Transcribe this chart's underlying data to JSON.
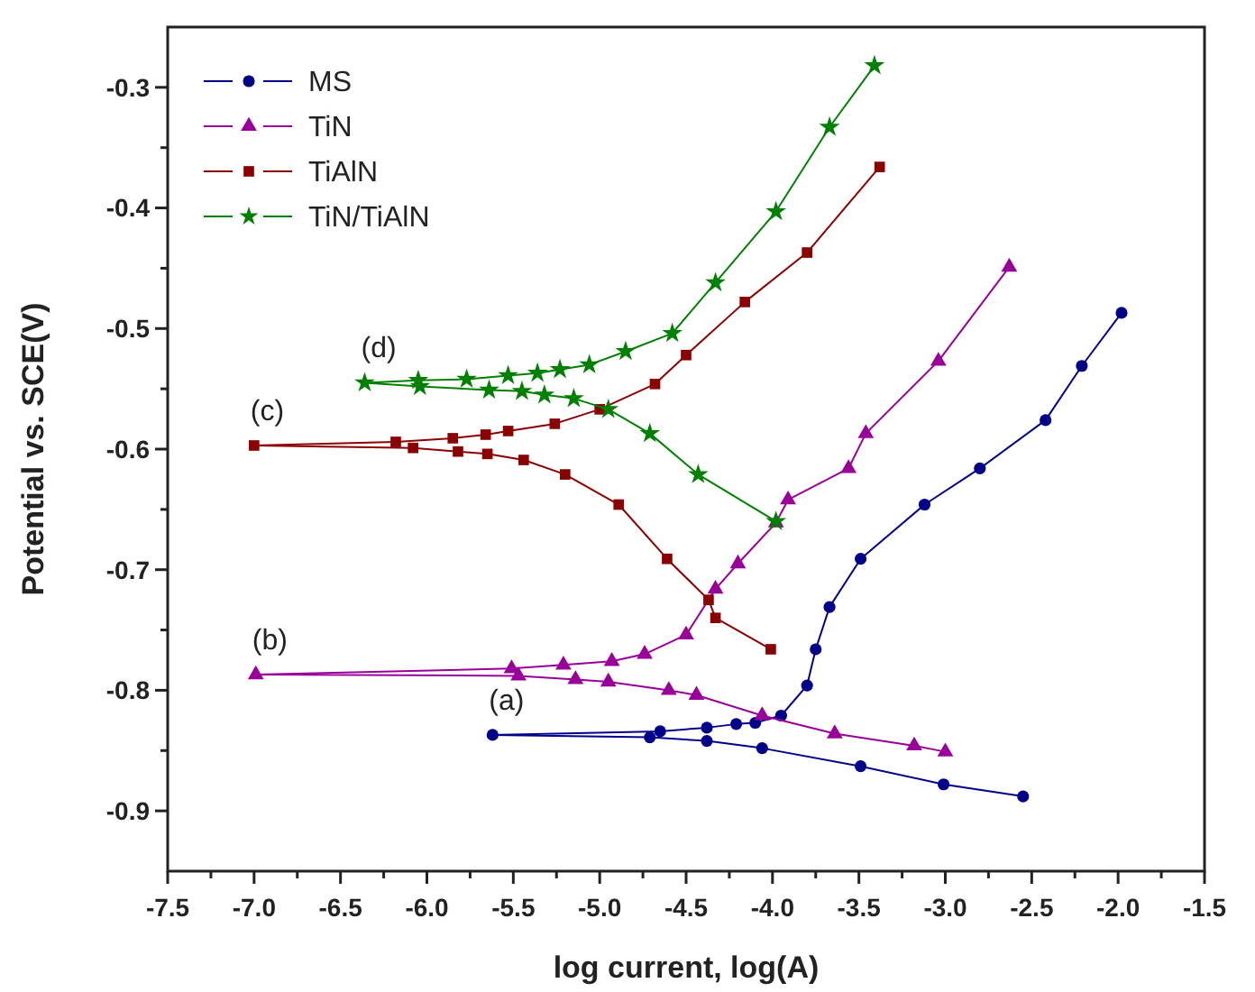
{
  "chart_data": {
    "type": "line",
    "xlabel": "log current, log(A)",
    "ylabel": "Potential vs. SCE(V)",
    "xlim": [
      -7.5,
      -1.5
    ],
    "ylim": [
      -0.95,
      -0.25
    ],
    "xticks": [
      -7.5,
      {
        "value": -7.25,
        "label": null
      },
      {
        "value": -7,
        "label": "-7.0"
      },
      {
        "value": -6.75,
        "label": null
      },
      -6.5,
      {
        "value": -6.25,
        "label": null
      },
      {
        "value": -6,
        "label": "-6.0"
      },
      {
        "value": -5.75,
        "label": null
      },
      -5.5,
      {
        "value": -5.25,
        "label": null
      },
      {
        "value": -5,
        "label": "-5.0"
      },
      {
        "value": -4.75,
        "label": null
      },
      -4.5,
      {
        "value": -4.25,
        "label": null
      },
      {
        "value": -4,
        "label": "-4.0"
      },
      {
        "value": -3.75,
        "label": null
      },
      -3.5,
      {
        "value": -3.25,
        "label": null
      },
      {
        "value": -3,
        "label": "-3.0"
      },
      {
        "value": -2.75,
        "label": null
      },
      -2.5,
      {
        "value": -2.25,
        "label": null
      },
      {
        "value": -2,
        "label": "-2.0"
      },
      {
        "value": -1.75,
        "label": null
      },
      -1.5
    ],
    "yticks": [
      -0.9,
      {
        "value": -0.85,
        "label": null
      },
      -0.8,
      {
        "value": -0.75,
        "label": null
      },
      -0.7,
      {
        "value": -0.65,
        "label": null
      },
      -0.6,
      {
        "value": -0.55,
        "label": null
      },
      -0.5,
      {
        "value": -0.45,
        "label": null
      },
      -0.4,
      {
        "value": -0.35,
        "label": null
      },
      -0.3
    ],
    "grid": false,
    "legend": "top left",
    "line_style": "solid",
    "annotations": [
      {
        "text": "(a)",
        "x": -5.62,
        "y": -0.837
      },
      {
        "text": "(b)",
        "x": -6.99,
        "y": -0.787
      },
      {
        "text": "(c)",
        "x": -7.0,
        "y": -0.597
      },
      {
        "text": "(d)",
        "x": -6.36,
        "y": -0.545
      }
    ],
    "series": [
      {
        "name": "MS",
        "color": "#00008b",
        "marker": "circle",
        "x": [
          -2.55,
          -3.01,
          -3.49,
          -4.06,
          -4.38,
          -4.71,
          -5.62,
          -4.65,
          -4.38,
          -4.21,
          -4.1,
          -3.95,
          -3.8,
          -3.75,
          -3.67,
          -3.49,
          -3.12,
          -2.8,
          -2.42,
          -2.21,
          -1.98
        ],
        "values": [
          -0.888,
          -0.878,
          -0.863,
          -0.848,
          -0.842,
          -0.839,
          -0.837,
          -0.834,
          -0.831,
          -0.828,
          -0.827,
          -0.821,
          -0.796,
          -0.766,
          -0.731,
          -0.691,
          -0.646,
          -0.616,
          -0.576,
          -0.531,
          -0.487
        ]
      },
      {
        "name": "TiN",
        "color": "#990099",
        "marker": "triangle",
        "x": [
          -3.0,
          -3.18,
          -3.64,
          -4.06,
          -4.44,
          -4.6,
          -4.95,
          -5.14,
          -5.47,
          -6.99,
          -5.51,
          -5.21,
          -4.93,
          -4.74,
          -4.5,
          -4.33,
          -4.2,
          -3.98,
          -3.91,
          -3.56,
          -3.46,
          -3.04,
          -2.63
        ],
        "values": [
          -0.851,
          -0.846,
          -0.836,
          -0.821,
          -0.804,
          -0.8,
          -0.793,
          -0.791,
          -0.788,
          -0.787,
          -0.782,
          -0.779,
          -0.776,
          -0.77,
          -0.754,
          -0.716,
          -0.695,
          -0.661,
          -0.642,
          -0.616,
          -0.587,
          -0.527,
          -0.449
        ]
      },
      {
        "name": "TiAlN",
        "color": "#8b0000",
        "marker": "square",
        "x": [
          -4.01,
          -4.33,
          -4.37,
          -4.61,
          -4.89,
          -5.2,
          -5.44,
          -5.65,
          -5.82,
          -6.08,
          -7.0,
          -6.18,
          -5.85,
          -5.66,
          -5.53,
          -5.26,
          -5.0,
          -4.68,
          -4.5,
          -4.16,
          -3.8,
          -3.38
        ],
        "values": [
          -0.766,
          -0.74,
          -0.725,
          -0.691,
          -0.646,
          -0.621,
          -0.609,
          -0.604,
          -0.602,
          -0.599,
          -0.597,
          -0.594,
          -0.591,
          -0.588,
          -0.585,
          -0.579,
          -0.567,
          -0.546,
          -0.522,
          -0.478,
          -0.437,
          -0.366
        ]
      },
      {
        "name": "TiN/TiAlN",
        "color": "#008000",
        "marker": "star",
        "x": [
          -3.98,
          -4.43,
          -4.71,
          -4.95,
          -5.15,
          -5.32,
          -5.45,
          -5.64,
          -6.04,
          -6.36,
          -6.05,
          -5.77,
          -5.53,
          -5.36,
          -5.23,
          -5.06,
          -4.85,
          -4.58,
          -4.33,
          -3.98,
          -3.67,
          -3.41
        ],
        "values": [
          -0.66,
          -0.621,
          -0.587,
          -0.567,
          -0.558,
          -0.555,
          -0.552,
          -0.551,
          -0.548,
          -0.545,
          -0.543,
          -0.542,
          -0.539,
          -0.537,
          -0.534,
          -0.53,
          -0.519,
          -0.504,
          -0.462,
          -0.403,
          -0.333,
          -0.282
        ]
      }
    ]
  }
}
